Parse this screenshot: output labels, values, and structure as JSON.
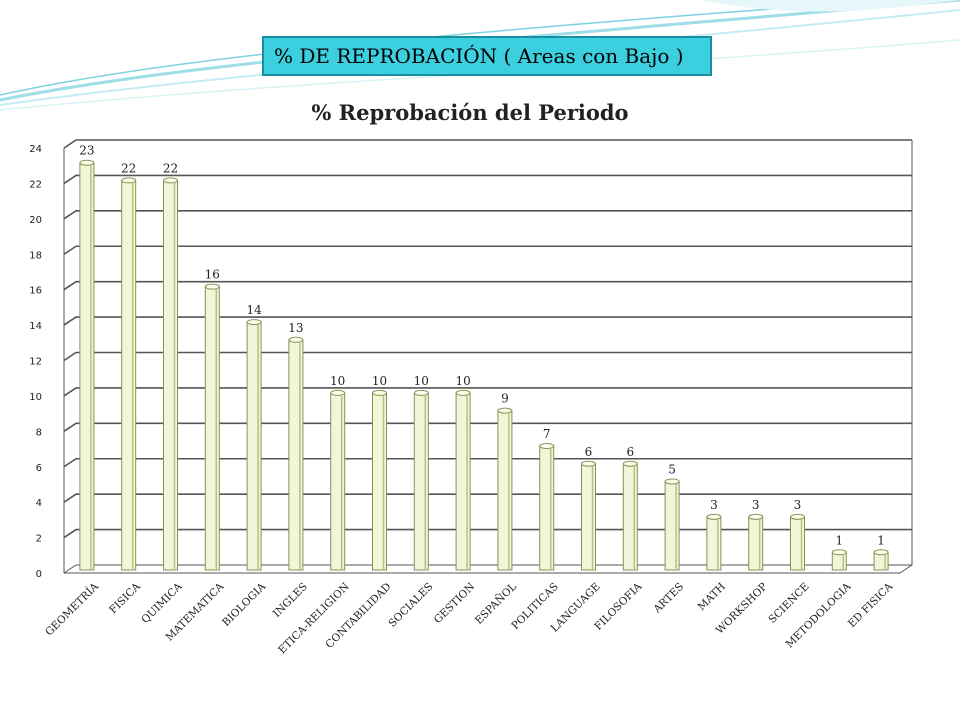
{
  "header": {
    "title": "%  DE REPROBACIÓN  ( Areas con Bajo )"
  },
  "colors": {
    "header_bg": "#3ccfe0",
    "header_border": "#1a8ea0",
    "bar_fill": "#f3f5d8",
    "bar_stroke": "#8a9156",
    "grid": "#555555",
    "swoosh": "#9fdde8"
  },
  "chart_data": {
    "type": "bar",
    "title": "% Reprobación del Periodo",
    "xlabel": "",
    "ylabel": "",
    "ylim": [
      0,
      24
    ],
    "yticks": [
      0,
      2,
      4,
      6,
      8,
      10,
      12,
      14,
      16,
      18,
      20,
      22,
      24
    ],
    "grid": true,
    "legend": "none",
    "categories": [
      "GEOMETRÍA",
      "FISICA",
      "QUIMICA",
      "MATEMATICA",
      "BIOLOGIA",
      "INGLES",
      "ETICA-RELIGION",
      "CONTABILIDAD",
      "SOCIALES",
      "GESTION",
      "ESPAÑOL",
      "POLITICAS",
      "LANGUAGE",
      "FILOSOFIA",
      "ARTES",
      "MATH",
      "WORKSHOP",
      "SCIENCE",
      "METODOLOGIA",
      "ED FISICA"
    ],
    "values": [
      23,
      22,
      22,
      16,
      14,
      13,
      10,
      10,
      10,
      10,
      9,
      7,
      6,
      6,
      5,
      3,
      3,
      3,
      1,
      1
    ]
  }
}
